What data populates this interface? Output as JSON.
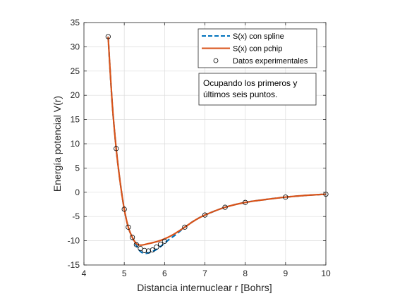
{
  "chart_data": {
    "type": "line",
    "xlabel": "Distancia internuclear r [Bohrs]",
    "ylabel": "Energía potencial V(r)",
    "xlim": [
      4,
      10
    ],
    "ylim": [
      -15,
      35
    ],
    "xticks": [
      4,
      5,
      6,
      7,
      8,
      9,
      10
    ],
    "yticks": [
      -15,
      -10,
      -5,
      0,
      5,
      10,
      15,
      20,
      25,
      30,
      35
    ],
    "grid": true,
    "legend_position": "top-right",
    "annotation": [
      "Ocupando los primeros y",
      "últimos seis puntos."
    ],
    "series": [
      {
        "name": "S(x) con spline",
        "style": "dashed",
        "color": "#0072BD",
        "x": [
          4.6,
          4.7,
          4.8,
          4.9,
          5.0,
          5.1,
          5.2,
          5.3,
          5.4,
          5.5,
          5.6,
          5.7,
          5.8,
          5.9,
          6.0,
          6.1,
          6.2,
          6.3,
          6.5,
          6.75,
          7.0,
          7.5,
          8.0,
          8.5,
          9.0,
          9.5,
          10.0
        ],
        "y": [
          32.1,
          18.5,
          9.0,
          2.0,
          -3.5,
          -7.2,
          -9.3,
          -11.0,
          -12.2,
          -12.6,
          -12.5,
          -12.2,
          -11.8,
          -11.2,
          -10.5,
          -9.8,
          -9.2,
          -8.6,
          -7.2,
          -5.8,
          -4.7,
          -3.1,
          -2.1,
          -1.5,
          -1.0,
          -0.65,
          -0.4
        ]
      },
      {
        "name": "S(x) con pchip",
        "style": "solid",
        "color": "#D95319",
        "x": [
          4.6,
          4.7,
          4.8,
          4.9,
          5.0,
          5.1,
          5.2,
          5.3,
          5.4,
          5.5,
          5.6,
          5.8,
          6.0,
          6.2,
          6.5,
          6.75,
          7.0,
          7.5,
          8.0,
          8.5,
          9.0,
          9.5,
          10.0
        ],
        "y": [
          32.1,
          18.5,
          9.0,
          2.0,
          -3.5,
          -7.2,
          -9.3,
          -10.6,
          -10.9,
          -10.8,
          -10.6,
          -10.2,
          -9.6,
          -8.8,
          -7.2,
          -5.8,
          -4.7,
          -3.1,
          -2.1,
          -1.5,
          -1.0,
          -0.65,
          -0.4
        ]
      }
    ],
    "points": {
      "name": "Datos experimentales",
      "x": [
        4.6,
        4.8,
        5.0,
        5.1,
        5.2,
        5.3,
        5.4,
        5.5,
        5.6,
        5.7,
        5.8,
        5.9,
        6.0,
        6.5,
        7.0,
        7.5,
        8.0,
        9.0,
        10.0
      ],
      "y": [
        32.1,
        9.0,
        -3.5,
        -7.2,
        -9.3,
        -10.8,
        -11.6,
        -12.0,
        -12.1,
        -11.9,
        -11.3,
        -10.7,
        -10.1,
        -7.2,
        -4.7,
        -3.1,
        -2.1,
        -1.0,
        -0.4
      ]
    }
  }
}
